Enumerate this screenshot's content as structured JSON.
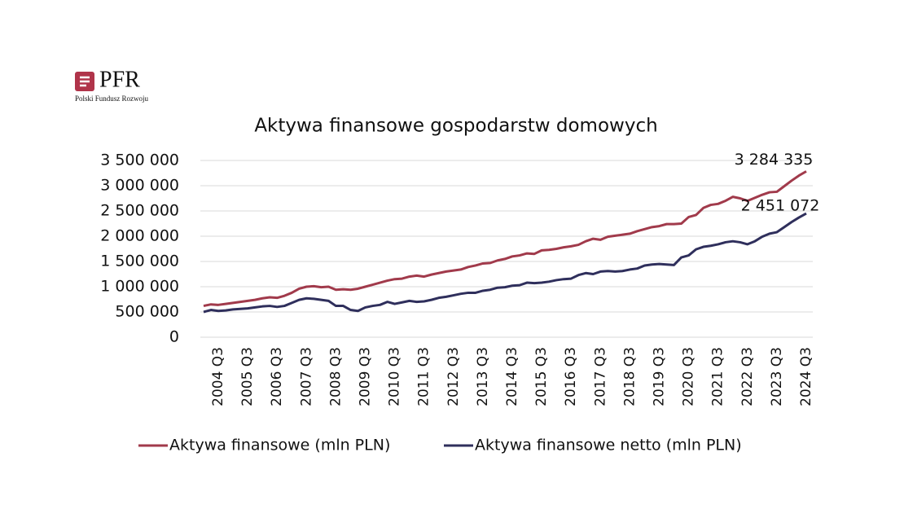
{
  "logo": {
    "name": "PFR",
    "subtitle": "Polski Fundusz Rozwoju"
  },
  "chart_data": {
    "type": "line",
    "title": "Aktywa finansowe gospodarstw domowych",
    "categories": [
      null,
      null,
      "2004 Q3",
      null,
      null,
      null,
      "2005 Q3",
      null,
      null,
      null,
      "2006 Q3",
      null,
      null,
      null,
      "2007 Q3",
      null,
      null,
      null,
      "2008 Q3",
      null,
      null,
      null,
      "2009 Q3",
      null,
      null,
      null,
      "2010 Q3",
      null,
      null,
      null,
      "2011 Q3",
      null,
      null,
      null,
      "2012 Q3",
      null,
      null,
      null,
      "2013 Q3",
      null,
      null,
      null,
      "2014 Q3",
      null,
      null,
      null,
      "2015 Q3",
      null,
      null,
      null,
      "2016 Q3",
      null,
      null,
      null,
      "2017 Q3",
      null,
      null,
      null,
      "2018 Q3",
      null,
      null,
      null,
      "2019 Q3",
      null,
      null,
      null,
      "2020 Q3",
      null,
      null,
      null,
      "2021 Q3",
      null,
      null,
      null,
      "2022 Q3",
      null,
      null,
      null,
      "2023 Q3",
      null,
      null,
      null,
      "2024 Q3"
    ],
    "series": [
      {
        "name": "Aktywa finansowe (mln PLN)",
        "color": "#a13a4b",
        "values": [
          620000,
          650000,
          640000,
          660000,
          680000,
          700000,
          720000,
          740000,
          770000,
          790000,
          780000,
          820000,
          880000,
          960000,
          1000000,
          1010000,
          990000,
          1000000,
          940000,
          950000,
          940000,
          960000,
          1000000,
          1040000,
          1080000,
          1120000,
          1150000,
          1160000,
          1200000,
          1220000,
          1200000,
          1240000,
          1270000,
          1300000,
          1320000,
          1340000,
          1390000,
          1420000,
          1460000,
          1470000,
          1520000,
          1550000,
          1600000,
          1620000,
          1660000,
          1650000,
          1720000,
          1730000,
          1750000,
          1780000,
          1800000,
          1830000,
          1900000,
          1950000,
          1930000,
          1990000,
          2010000,
          2030000,
          2050000,
          2100000,
          2140000,
          2180000,
          2200000,
          2240000,
          2240000,
          2250000,
          2380000,
          2420000,
          2560000,
          2620000,
          2640000,
          2700000,
          2780000,
          2750000,
          2700000,
          2760000,
          2820000,
          2870000,
          2880000,
          2990000,
          3100000,
          3200000,
          3284335
        ],
        "value_labels": [
          null,
          null,
          null,
          null,
          null,
          null,
          null,
          null,
          null,
          null,
          null,
          null,
          null,
          null,
          null,
          null,
          null,
          null,
          null,
          null,
          null,
          null,
          null,
          null,
          null,
          null,
          null,
          null,
          null,
          null,
          null,
          null,
          null,
          null,
          null,
          null,
          null,
          null,
          null,
          null,
          null,
          null,
          null,
          null,
          null,
          null,
          null,
          null,
          null,
          null,
          null,
          null,
          null,
          null,
          null,
          null,
          null,
          null,
          null,
          null,
          null,
          null,
          null,
          null,
          null,
          null,
          null,
          null,
          null,
          null,
          null,
          null,
          null,
          null,
          null,
          null,
          null,
          null,
          null,
          null,
          null,
          null,
          "3 284 335"
        ]
      },
      {
        "name": "Aktywa finansowe netto (mln PLN)",
        "color": "#2f2f5c",
        "values": [
          500000,
          540000,
          520000,
          530000,
          550000,
          560000,
          570000,
          590000,
          610000,
          620000,
          600000,
          620000,
          680000,
          740000,
          770000,
          760000,
          740000,
          720000,
          620000,
          620000,
          540000,
          520000,
          590000,
          620000,
          640000,
          700000,
          660000,
          690000,
          720000,
          700000,
          710000,
          740000,
          780000,
          800000,
          830000,
          860000,
          880000,
          880000,
          920000,
          940000,
          980000,
          990000,
          1020000,
          1030000,
          1080000,
          1070000,
          1080000,
          1100000,
          1130000,
          1150000,
          1160000,
          1230000,
          1270000,
          1250000,
          1300000,
          1310000,
          1300000,
          1310000,
          1340000,
          1360000,
          1420000,
          1440000,
          1450000,
          1440000,
          1430000,
          1580000,
          1620000,
          1740000,
          1790000,
          1810000,
          1840000,
          1880000,
          1900000,
          1880000,
          1840000,
          1900000,
          1990000,
          2050000,
          2080000,
          2180000,
          2280000,
          2370000,
          2451072
        ],
        "value_labels": [
          null,
          null,
          null,
          null,
          null,
          null,
          null,
          null,
          null,
          null,
          null,
          null,
          null,
          null,
          null,
          null,
          null,
          null,
          null,
          null,
          null,
          null,
          null,
          null,
          null,
          null,
          null,
          null,
          null,
          null,
          null,
          null,
          null,
          null,
          null,
          null,
          null,
          null,
          null,
          null,
          null,
          null,
          null,
          null,
          null,
          null,
          null,
          null,
          null,
          null,
          null,
          null,
          null,
          null,
          null,
          null,
          null,
          null,
          null,
          null,
          null,
          null,
          null,
          null,
          null,
          null,
          null,
          null,
          null,
          null,
          null,
          null,
          null,
          null,
          null,
          null,
          null,
          null,
          null,
          null,
          null,
          null,
          "2 451 072"
        ]
      }
    ],
    "ylim": [
      0,
      3500000
    ],
    "yticks": [
      0,
      {
        "value": 500000,
        "label": "500 000"
      },
      {
        "value": 1000000,
        "label": "1 000 000"
      },
      {
        "value": 1500000,
        "label": "1 500 000"
      },
      {
        "value": 2000000,
        "label": "2 000 000"
      },
      {
        "value": 2500000,
        "label": "2 500 000"
      },
      {
        "value": 3000000,
        "label": "3 000 000"
      },
      {
        "value": 3500000,
        "label": "3 500 000"
      }
    ],
    "grid": true,
    "legend": "bottom"
  }
}
